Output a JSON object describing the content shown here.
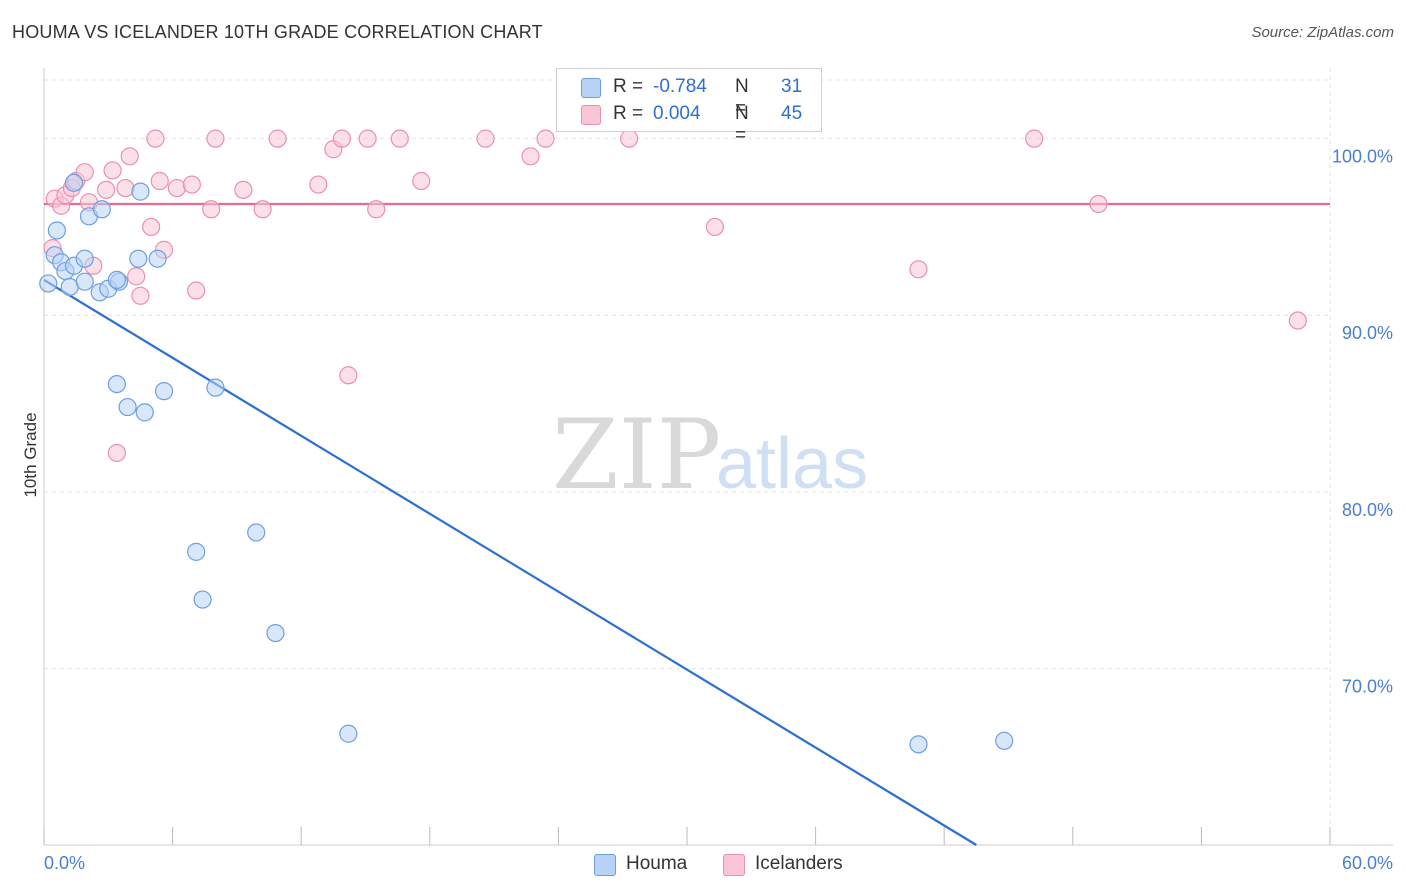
{
  "header": {
    "title": "HOUMA VS ICELANDER 10TH GRADE CORRELATION CHART",
    "source": "Source: ZipAtlas.com"
  },
  "watermark": {
    "zip": "ZIP",
    "atlas": "atlas"
  },
  "colors": {
    "houma_fill": "#b8d3f5",
    "houma_stroke": "#6d9fe0",
    "houma_line": "#2d6fd0",
    "icel_fill": "#f9c6d6",
    "icel_stroke": "#ea8fb0",
    "icel_line": "#e36d95",
    "tick_text": "#4a7fd0",
    "grid": "#e2e2e2"
  },
  "legend": {
    "houma": {
      "r_label": "R =",
      "r_value": "-0.784",
      "n_label": "N =",
      "n_value": "31"
    },
    "icelanders": {
      "r_label": "R =",
      "r_value": "0.004",
      "n_label": "N =",
      "n_value": "45"
    }
  },
  "bottom_legend": {
    "houma": "Houma",
    "icelanders": "Icelanders"
  },
  "chart_data": {
    "type": "scatter",
    "title": "HOUMA VS ICELANDER 10TH GRADE CORRELATION CHART",
    "xlabel": "",
    "ylabel": "10th Grade",
    "xlim": [
      0,
      60
    ],
    "ylim": [
      60,
      104
    ],
    "x_tick_labels": [
      "0.0%",
      "60.0%"
    ],
    "y_ticks": [
      70,
      80,
      90,
      100
    ],
    "y_tick_labels": [
      "70.0%",
      "80.0%",
      "90.0%",
      "100.0%"
    ],
    "grid": true,
    "series": [
      {
        "name": "Houma",
        "points": [
          [
            0.2,
            91.8
          ],
          [
            0.5,
            93.4
          ],
          [
            0.6,
            94.8
          ],
          [
            0.8,
            93.0
          ],
          [
            1.0,
            92.5
          ],
          [
            1.2,
            91.6
          ],
          [
            1.4,
            92.8
          ],
          [
            1.4,
            97.5
          ],
          [
            1.9,
            91.9
          ],
          [
            1.9,
            93.2
          ],
          [
            2.1,
            95.6
          ],
          [
            2.6,
            91.3
          ],
          [
            2.7,
            96.0
          ],
          [
            3.0,
            91.5
          ],
          [
            3.5,
            91.9
          ],
          [
            3.4,
            92.0
          ],
          [
            4.5,
            97.0
          ],
          [
            5.3,
            93.2
          ],
          [
            4.4,
            93.2
          ],
          [
            3.4,
            86.1
          ],
          [
            3.9,
            84.8
          ],
          [
            4.7,
            84.5
          ],
          [
            5.6,
            85.7
          ],
          [
            8.0,
            85.9
          ],
          [
            7.1,
            76.6
          ],
          [
            9.9,
            77.7
          ],
          [
            7.4,
            73.9
          ],
          [
            10.8,
            72.0
          ],
          [
            14.2,
            66.3
          ],
          [
            40.8,
            65.7
          ],
          [
            44.8,
            65.9
          ]
        ],
        "trend": {
          "x": [
            0,
            43.5
          ],
          "y": [
            92.0,
            60.0
          ]
        }
      },
      {
        "name": "Icelanders",
        "points": [
          [
            0.4,
            93.8
          ],
          [
            0.5,
            96.6
          ],
          [
            0.8,
            96.2
          ],
          [
            1.0,
            96.8
          ],
          [
            1.3,
            97.2
          ],
          [
            1.5,
            97.6
          ],
          [
            1.9,
            98.1
          ],
          [
            2.1,
            96.4
          ],
          [
            2.3,
            92.8
          ],
          [
            2.9,
            97.1
          ],
          [
            3.2,
            98.2
          ],
          [
            3.8,
            97.2
          ],
          [
            4.0,
            99.0
          ],
          [
            4.3,
            92.2
          ],
          [
            4.5,
            91.1
          ],
          [
            5.0,
            95.0
          ],
          [
            5.2,
            100.0
          ],
          [
            5.4,
            97.6
          ],
          [
            5.6,
            93.7
          ],
          [
            6.2,
            97.2
          ],
          [
            6.9,
            97.4
          ],
          [
            7.1,
            91.4
          ],
          [
            7.8,
            96.0
          ],
          [
            8.0,
            100.0
          ],
          [
            9.3,
            97.1
          ],
          [
            10.2,
            96.0
          ],
          [
            10.9,
            100.0
          ],
          [
            12.8,
            97.4
          ],
          [
            13.5,
            99.4
          ],
          [
            13.9,
            100.0
          ],
          [
            15.1,
            100.0
          ],
          [
            15.5,
            96.0
          ],
          [
            16.6,
            100.0
          ],
          [
            17.6,
            97.6
          ],
          [
            20.6,
            100.0
          ],
          [
            22.7,
            99.0
          ],
          [
            23.4,
            100.0
          ],
          [
            27.3,
            100.0
          ],
          [
            31.3,
            95.0
          ],
          [
            40.8,
            92.6
          ],
          [
            46.2,
            100.0
          ],
          [
            49.2,
            96.3
          ],
          [
            58.5,
            89.7
          ],
          [
            14.2,
            86.6
          ],
          [
            3.4,
            82.2
          ]
        ],
        "trend": {
          "x": [
            0,
            60
          ],
          "y": [
            96.3,
            96.3
          ]
        }
      }
    ]
  }
}
